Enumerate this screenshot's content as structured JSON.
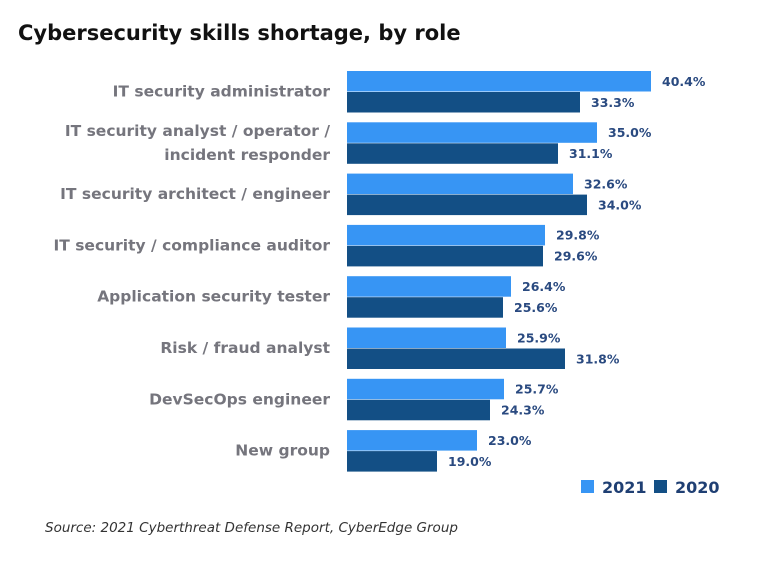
{
  "chart_data": {
    "type": "bar",
    "orientation": "horizontal",
    "title": "Cybersecurity skills shortage, by role",
    "categories": [
      [
        "IT security administrator"
      ],
      [
        "IT security analyst / operator /",
        "incident responder"
      ],
      [
        "IT security architect / engineer"
      ],
      [
        "IT security / compliance auditor"
      ],
      [
        "Application security tester"
      ],
      [
        "Risk / fraud analyst"
      ],
      [
        "DevSecOps engineer"
      ],
      [
        "New group"
      ]
    ],
    "series": [
      {
        "name": "2021",
        "color": "#3795f4",
        "values": [
          40.4,
          35.0,
          32.6,
          29.8,
          26.4,
          25.9,
          25.7,
          23.0
        ]
      },
      {
        "name": "2020",
        "color": "#134f85",
        "values": [
          33.3,
          31.1,
          34.0,
          29.6,
          25.6,
          31.8,
          24.3,
          19.0
        ]
      }
    ],
    "value_format": "%",
    "xlim": [
      10,
      45
    ],
    "grid": false,
    "legend": "bottom-right",
    "source": "Source: 2021 Cyberthreat Defense Report, CyberEdge Group"
  }
}
